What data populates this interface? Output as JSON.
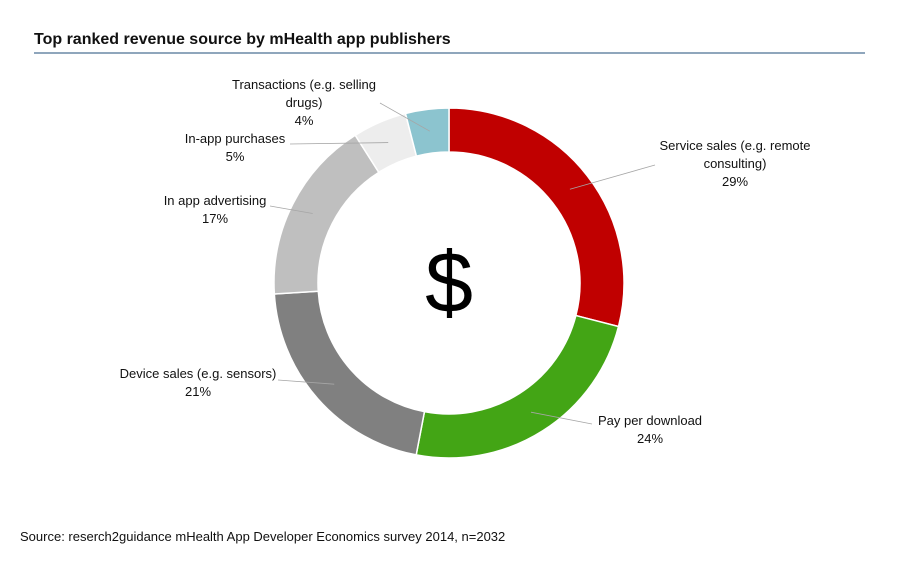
{
  "chart_data": {
    "type": "pie",
    "title": "Top ranked revenue source by mHealth app publishers",
    "center_label": "$",
    "categories": [
      "Service sales (e.g. remote consulting)",
      "Pay per download",
      "Device sales (e.g. sensors)",
      "In app advertising",
      "In-app purchases",
      "Transactions (e.g. selling drugs)"
    ],
    "values": [
      29,
      24,
      21,
      17,
      5,
      4
    ],
    "value_labels": [
      "29%",
      "24%",
      "21%",
      "17%",
      "5%",
      "4%"
    ],
    "colors": [
      "#c00000",
      "#43a515",
      "#808080",
      "#bfbfbf",
      "#ededed",
      "#8cc4cf"
    ],
    "source": "Source: reserch2guidance mHealth App Developer Economics survey 2014, n=2032"
  }
}
